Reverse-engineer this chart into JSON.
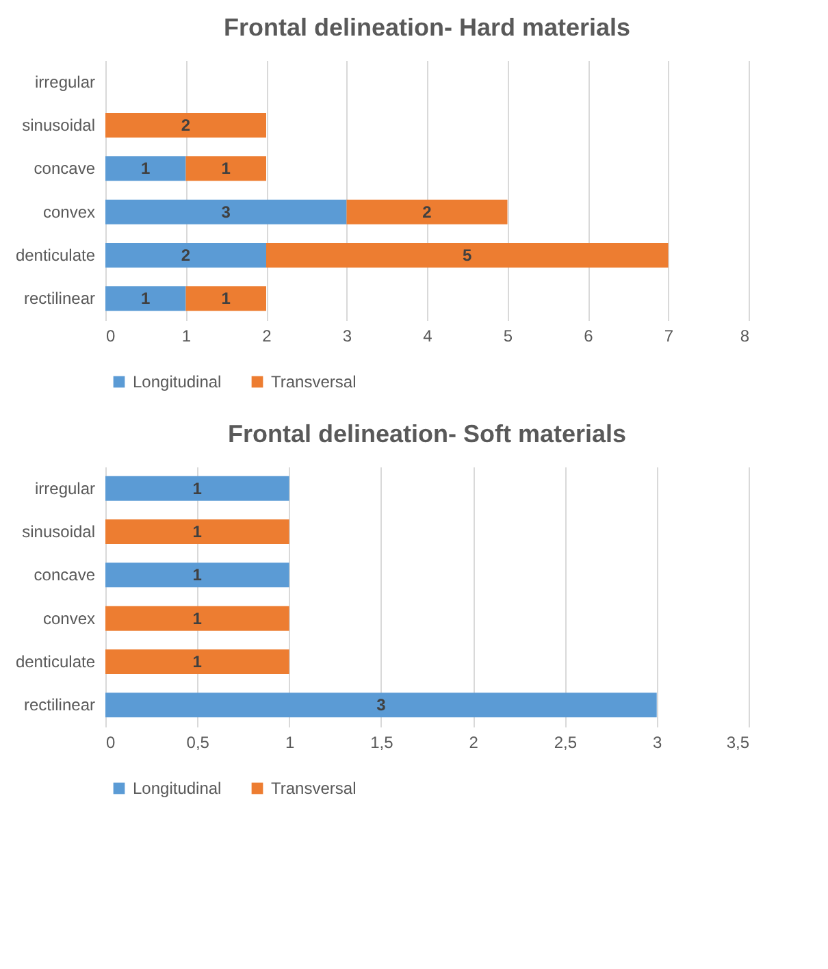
{
  "chart_data": [
    {
      "type": "bar",
      "title": "Frontal delineation- Hard materials",
      "orientation": "horizontal",
      "stacked": true,
      "categories": [
        "irregular",
        "sinusoidal",
        "concave",
        "convex",
        "denticulate",
        "rectilinear"
      ],
      "series": [
        {
          "name": "Longitudinal",
          "color": "#5b9bd5",
          "values": [
            null,
            null,
            1,
            3,
            2,
            1
          ]
        },
        {
          "name": "Transversal",
          "color": "#ed7d31",
          "values": [
            null,
            2,
            1,
            2,
            5,
            1
          ]
        }
      ],
      "xlim": [
        0,
        8
      ],
      "xticks": [
        0,
        1,
        2,
        3,
        4,
        5,
        6,
        7,
        8
      ],
      "grid": "x",
      "legend": "bottom",
      "data_labels": true
    },
    {
      "type": "bar",
      "title": "Frontal delineation- Soft materials",
      "orientation": "horizontal",
      "stacked": true,
      "categories": [
        "irregular",
        "sinusoidal",
        "concave",
        "convex",
        "denticulate",
        "rectilinear"
      ],
      "series": [
        {
          "name": "Longitudinal",
          "color": "#5b9bd5",
          "values": [
            1,
            null,
            1,
            null,
            null,
            3
          ]
        },
        {
          "name": "Transversal",
          "color": "#ed7d31",
          "values": [
            null,
            1,
            null,
            1,
            1,
            null
          ]
        }
      ],
      "xlim": [
        0,
        3.5
      ],
      "xticks": [
        0,
        {
          "value": 0.5,
          "label": "0,5"
        },
        1,
        {
          "value": 1.5,
          "label": "1,5"
        },
        2,
        {
          "value": 2.5,
          "label": "2,5"
        },
        3,
        {
          "value": 3.5,
          "label": "3,5"
        }
      ],
      "grid": "x",
      "legend": "bottom",
      "data_labels": true
    }
  ]
}
